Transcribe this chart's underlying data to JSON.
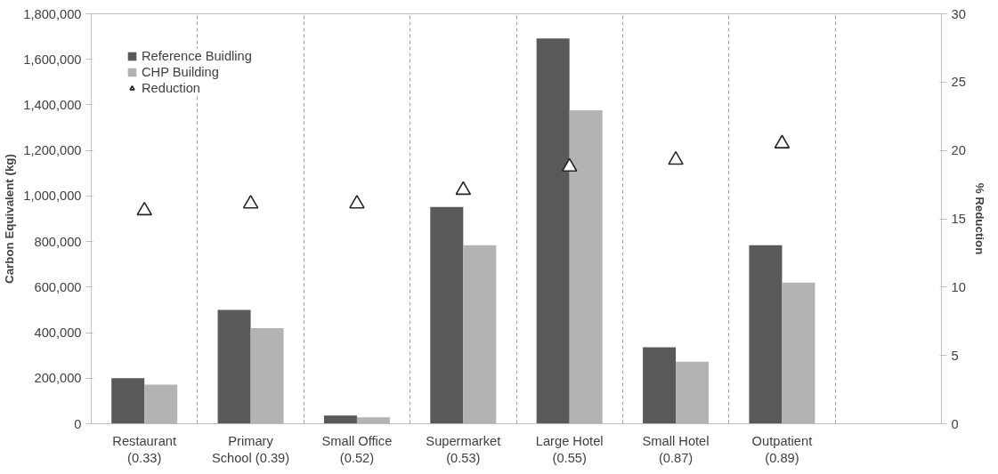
{
  "chart_data": {
    "type": "bar",
    "ylabel": "Carbon Equivalent (kg)",
    "y2label": "% Reduction",
    "categories": [
      "Restaurant (0.33)",
      "Primary School (0.39)",
      "Small Office (0.52)",
      "Supermarket (0.53)",
      "Large Hotel (0.55)",
      "Small Hotel (0.87)",
      "Outpatient (0.89)",
      null
    ],
    "series": [
      {
        "name": "Reference Buidling",
        "color": "#595959",
        "values": [
          200000,
          500000,
          36000,
          952000,
          1692000,
          336000,
          784000,
          null
        ]
      },
      {
        "name": "CHP Building",
        "color": "#b3b3b3",
        "values": [
          172000,
          420000,
          28000,
          784000,
          1376000,
          272000,
          620000,
          null
        ]
      },
      {
        "name": "Reduction",
        "type": "scatter",
        "axis": "y2",
        "marker": "triangle",
        "color": "#262626",
        "values": [
          15.6,
          16.1,
          16.1,
          17.1,
          18.8,
          19.3,
          20.5,
          null
        ]
      }
    ],
    "ylim": [
      0,
      1800000
    ],
    "yticks": [
      0,
      {
        "value": 200000,
        "label": "200,000"
      },
      {
        "value": 400000,
        "label": "400,000"
      },
      {
        "value": 600000,
        "label": "600,000"
      },
      {
        "value": 800000,
        "label": "800,000"
      },
      {
        "value": 1000000,
        "label": "1,000,000"
      },
      {
        "value": 1200000,
        "label": "1,200,000"
      },
      {
        "value": 1400000,
        "label": "1,400,000"
      },
      {
        "value": 1600000,
        "label": "1,600,000"
      },
      {
        "value": 1800000,
        "label": "1,800,000"
      }
    ],
    "y2lim": [
      0,
      30
    ],
    "y2ticks": [
      0,
      5,
      10,
      15,
      20,
      25,
      30
    ],
    "grid": "x",
    "legend": "top left"
  }
}
